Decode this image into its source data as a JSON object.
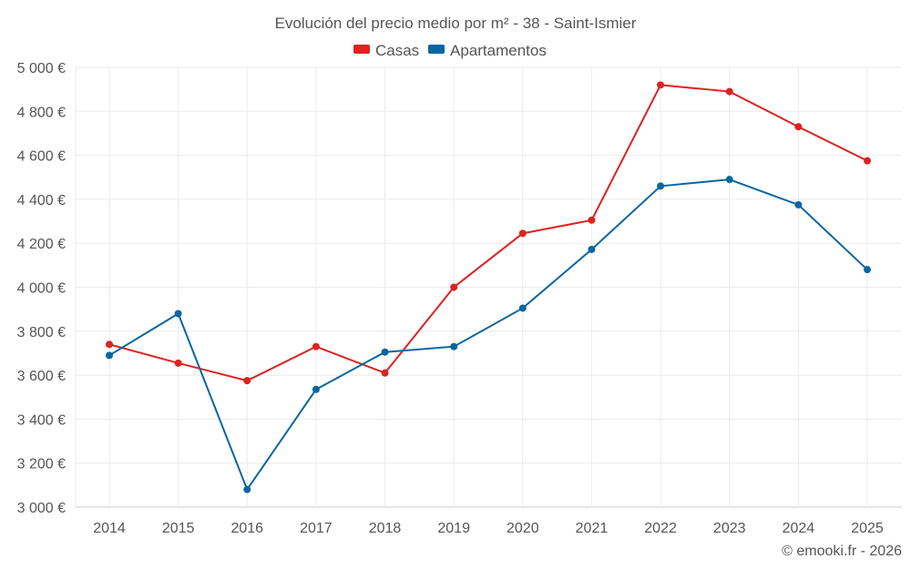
{
  "chart_data": {
    "type": "line",
    "title": "Evolución del precio medio por m² - 38 - Saint-Ismier",
    "x": [
      "2014",
      "2015",
      "2016",
      "2017",
      "2018",
      "2019",
      "2020",
      "2021",
      "2022",
      "2023",
      "2024",
      "2025"
    ],
    "series": [
      {
        "name": "Casas",
        "color": "#dd2222",
        "values": [
          3740,
          3655,
          3575,
          3730,
          3610,
          4000,
          4245,
          4305,
          4920,
          4890,
          4730,
          4575
        ]
      },
      {
        "name": "Apartamentos",
        "color": "#0a66a0",
        "values": [
          3690,
          3880,
          3080,
          3535,
          3705,
          3730,
          3905,
          4172,
          4460,
          4490,
          4375,
          4080
        ]
      }
    ],
    "yticks": [
      "3 000 €",
      "3 200 €",
      "3 400 €",
      "3 600 €",
      "3 800 €",
      "4 000 €",
      "4 200 €",
      "4 400 €",
      "4 600 €",
      "4 800 €",
      "5 000 €"
    ],
    "ylim": [
      3000,
      5000
    ],
    "grid": true,
    "legend": "top-center",
    "credit": "© emooki.fr - 2026"
  }
}
